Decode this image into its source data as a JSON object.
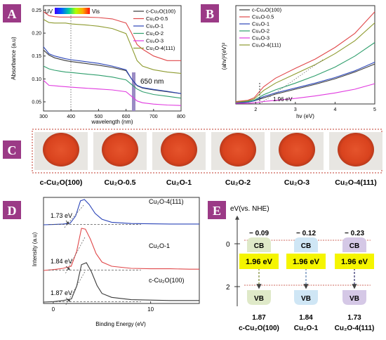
{
  "panels": {
    "A": {
      "label": "A",
      "bg": "#9b3a86"
    },
    "B": {
      "label": "B",
      "bg": "#9b3a86"
    },
    "C": {
      "label": "C",
      "bg": "#9b3a86"
    },
    "D": {
      "label": "D",
      "bg": "#9b3a86"
    },
    "E": {
      "label": "E",
      "bg": "#9b3a86"
    }
  },
  "colors": {
    "c100": "#3a3a3a",
    "s05": "#e0484a",
    "s1": "#2a44b8",
    "s2": "#2e9e6c",
    "s3": "#e03adf",
    "s4": "#8d9a2e",
    "dotted_border": "#c0392b",
    "bandgap_box": "#f5f500",
    "cb_fill": [
      "#dfe9c8",
      "#cfe6f5",
      "#d5c8e6"
    ],
    "vb_fill": [
      "#dfe9c8",
      "#cfe6f5",
      "#d5c8e6"
    ]
  },
  "chart_data": [
    {
      "id": "A",
      "type": "line",
      "xlabel": "wavelength (nm)",
      "ylabel": "Absorbance (a.u)",
      "xlim": [
        300,
        800
      ],
      "ylim": [
        0.03,
        0.26
      ],
      "xticks": [
        300,
        400,
        500,
        600,
        700,
        800
      ],
      "yticks": [
        0.05,
        0.1,
        0.15,
        0.2,
        0.25
      ],
      "ytick_labels": [
        "0.05",
        "0.10",
        "0.15",
        "0.20",
        "0.25"
      ],
      "spectrum_left": "UV",
      "spectrum_right": "Vis",
      "annotation": "650 nm",
      "series": [
        {
          "name": "c-Cu₂O(100)",
          "color_key": "c100",
          "x": [
            300,
            320,
            340,
            360,
            380,
            400,
            450,
            500,
            550,
            600,
            620,
            640,
            660,
            700,
            750,
            800
          ],
          "y": [
            0.163,
            0.152,
            0.146,
            0.143,
            0.14,
            0.138,
            0.134,
            0.13,
            0.125,
            0.118,
            0.1,
            0.085,
            0.08,
            0.076,
            0.072,
            0.068
          ]
        },
        {
          "name": "Cu₂O-0.5",
          "color_key": "s05",
          "x": [
            300,
            320,
            340,
            360,
            380,
            400,
            450,
            500,
            550,
            600,
            620,
            640,
            660,
            700,
            750,
            800
          ],
          "y": [
            0.247,
            0.238,
            0.236,
            0.235,
            0.235,
            0.235,
            0.235,
            0.234,
            0.231,
            0.222,
            0.2,
            0.175,
            0.165,
            0.15,
            0.14,
            0.14
          ]
        },
        {
          "name": "Cu₂O-1",
          "color_key": "s1",
          "x": [
            300,
            320,
            340,
            360,
            380,
            400,
            450,
            500,
            550,
            600,
            620,
            640,
            660,
            700,
            750,
            800
          ],
          "y": [
            0.17,
            0.155,
            0.15,
            0.147,
            0.144,
            0.142,
            0.138,
            0.134,
            0.128,
            0.12,
            0.1,
            0.086,
            0.081,
            0.077,
            0.073,
            0.068
          ]
        },
        {
          "name": "Cu₂O-2",
          "color_key": "s2",
          "x": [
            300,
            320,
            340,
            360,
            380,
            400,
            450,
            500,
            550,
            600,
            620,
            640,
            660,
            700,
            750,
            800
          ],
          "y": [
            0.128,
            0.122,
            0.119,
            0.117,
            0.115,
            0.114,
            0.111,
            0.108,
            0.104,
            0.098,
            0.088,
            0.078,
            0.072,
            0.066,
            0.062,
            0.058
          ]
        },
        {
          "name": "Cu₂O-3",
          "color_key": "s3",
          "x": [
            300,
            320,
            340,
            360,
            380,
            400,
            450,
            500,
            550,
            600,
            620,
            640,
            660,
            700,
            750,
            800
          ],
          "y": [
            0.097,
            0.086,
            0.085,
            0.084,
            0.083,
            0.082,
            0.08,
            0.078,
            0.076,
            0.072,
            0.062,
            0.052,
            0.048,
            0.045,
            0.043,
            0.042
          ]
        },
        {
          "name": "Cu₂O-4(111)",
          "color_key": "s4",
          "x": [
            300,
            320,
            340,
            360,
            380,
            400,
            450,
            500,
            550,
            600,
            620,
            640,
            660,
            700,
            750,
            800
          ],
          "y": [
            0.23,
            0.223,
            0.222,
            0.222,
            0.222,
            0.22,
            0.218,
            0.215,
            0.21,
            0.199,
            0.17,
            0.14,
            0.128,
            0.12,
            0.115,
            0.112
          ]
        }
      ]
    },
    {
      "id": "B",
      "type": "line",
      "xlabel": "hv (eV)",
      "ylabel": "(ahv)²(eV)²",
      "xlim": [
        1.5,
        5
      ],
      "ylim": [
        0,
        1.6
      ],
      "xticks": [
        2,
        3,
        4,
        5
      ],
      "annotation": "1.96 eV",
      "series": [
        {
          "name": "c-Cu₂O(100)",
          "color_key": "c100",
          "x": [
            1.5,
            1.8,
            1.96,
            2.2,
            2.5,
            3,
            3.5,
            4,
            4.5,
            5
          ],
          "y": [
            0.02,
            0.03,
            0.05,
            0.1,
            0.16,
            0.24,
            0.32,
            0.41,
            0.52,
            0.65
          ]
        },
        {
          "name": "Cu₂O-0.5",
          "color_key": "s05",
          "x": [
            1.5,
            1.8,
            1.96,
            2.2,
            2.5,
            3,
            3.5,
            4,
            4.5,
            5
          ],
          "y": [
            0.04,
            0.06,
            0.1,
            0.28,
            0.42,
            0.58,
            0.73,
            0.92,
            1.15,
            1.5
          ]
        },
        {
          "name": "Cu₂O-1",
          "color_key": "s1",
          "x": [
            1.5,
            1.8,
            1.96,
            2.2,
            2.5,
            3,
            3.5,
            4,
            4.5,
            5
          ],
          "y": [
            0.02,
            0.03,
            0.05,
            0.12,
            0.18,
            0.26,
            0.34,
            0.43,
            0.54,
            0.68
          ]
        },
        {
          "name": "Cu₂O-2",
          "color_key": "s2",
          "x": [
            1.5,
            1.8,
            1.96,
            2.2,
            2.5,
            3,
            3.5,
            4,
            4.5,
            5
          ],
          "y": [
            0.03,
            0.04,
            0.06,
            0.15,
            0.23,
            0.34,
            0.46,
            0.6,
            0.78,
            1.0
          ]
        },
        {
          "name": "Cu₂O-3",
          "color_key": "s3",
          "x": [
            1.5,
            1.8,
            1.96,
            2.2,
            2.5,
            3,
            3.5,
            4,
            4.5,
            5
          ],
          "y": [
            0.01,
            0.01,
            0.02,
            0.04,
            0.06,
            0.09,
            0.13,
            0.18,
            0.24,
            0.33
          ]
        },
        {
          "name": "Cu₂O-4(111)",
          "color_key": "s4",
          "x": [
            1.5,
            1.8,
            1.96,
            2.2,
            2.5,
            3,
            3.5,
            4,
            4.5,
            5
          ],
          "y": [
            0.03,
            0.05,
            0.08,
            0.22,
            0.34,
            0.49,
            0.64,
            0.82,
            1.03,
            1.32
          ]
        }
      ]
    },
    {
      "id": "D",
      "type": "line",
      "xlabel": "Binding Energy (eV)",
      "ylabel": "Intensity (a.u)",
      "xlim": [
        -1,
        15
      ],
      "xticks": [
        0,
        10
      ],
      "series": [
        {
          "name": "Cu₂O-4(111)",
          "label": "1.73 eV",
          "color_key": "s1",
          "x": [
            -1,
            0,
            1,
            1.73,
            2.3,
            2.8,
            3.2,
            3.7,
            4.3,
            5,
            6,
            8,
            10,
            12,
            14,
            15
          ],
          "y": [
            0,
            0.01,
            0.03,
            0.06,
            0.35,
            0.95,
            1.0,
            0.8,
            0.45,
            0.22,
            0.1,
            0.05,
            0.04,
            0.03,
            0.03,
            0.03
          ]
        },
        {
          "name": "Cu₂O-1",
          "label": "1.84 eV",
          "color_key": "s05",
          "x": [
            -1,
            0,
            1,
            1.84,
            2.4,
            2.9,
            3.3,
            3.8,
            4.4,
            5,
            6,
            8,
            10,
            12,
            14,
            15
          ],
          "y": [
            0,
            0.02,
            0.05,
            0.1,
            0.45,
            1.0,
            0.98,
            0.75,
            0.4,
            0.2,
            0.1,
            0.05,
            0.04,
            0.04,
            0.03,
            0.03
          ]
        },
        {
          "name": "c-Cu₂O(100)",
          "label": "1.87 eV",
          "color_key": "c100",
          "x": [
            -1,
            0,
            1,
            1.87,
            2.4,
            2.9,
            3.4,
            3.9,
            4.5,
            5,
            6,
            8,
            10,
            12,
            14,
            15
          ],
          "y": [
            0,
            0.01,
            0.04,
            0.08,
            0.4,
            0.95,
            1.0,
            0.78,
            0.42,
            0.22,
            0.12,
            0.06,
            0.05,
            0.04,
            0.04,
            0.04
          ]
        }
      ]
    }
  ],
  "panelA_legend": [
    "c-Cu₂O(100)",
    "Cu₂O-0.5",
    "Cu₂O-1",
    "Cu₂O-2",
    "Cu₂O-3",
    "Cu₂O-4(111)"
  ],
  "panelC": {
    "samples": [
      "c-Cu₂O(100)",
      "Cu₂O-0.5",
      "Cu₂O-1",
      "Cu₂O-2",
      "Cu₂O-3",
      "Cu₂O-4(111)"
    ]
  },
  "panelE": {
    "yaxis_label": "eV(vs. NHE)",
    "ytick_labels": [
      "0",
      "2"
    ],
    "cb_label": "CB",
    "vb_label": "VB",
    "bandgap_label": "1.96 eV",
    "columns": [
      {
        "name": "c-Cu₂O(100)",
        "cb": "− 0.09",
        "vb": "1.87"
      },
      {
        "name": "Cu₂O-1",
        "cb": "− 0.12",
        "vb": "1.84"
      },
      {
        "name": "Cu₂O-4(111)",
        "cb": "− 0.23",
        "vb": "1.73"
      }
    ]
  }
}
